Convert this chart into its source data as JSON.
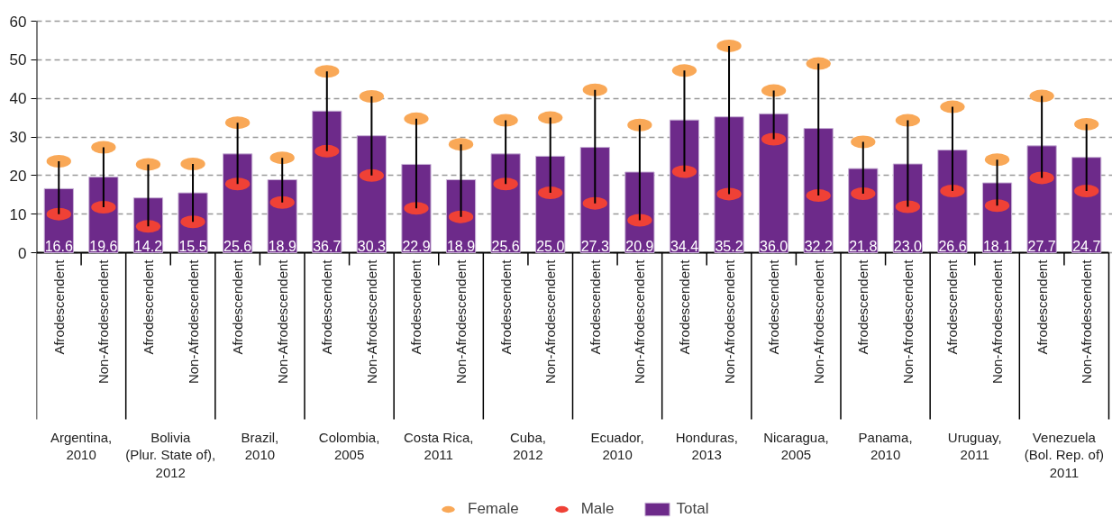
{
  "chart_data": {
    "type": "bar",
    "categories": [
      "Afrodescendent",
      "Non-Afrodescendent",
      "Afrodescendent",
      "Non-Afrodescendent",
      "Afrodescendent",
      "Non-Afrodescendent",
      "Afrodescendent",
      "Non-Afrodescendent",
      "Afrodescendent",
      "Non-Afrodescendent",
      "Afrodescendent",
      "Non-Afrodescendent",
      "Afrodescendent",
      "Non-Afrodescendent",
      "Afrodescendent",
      "Non-Afrodescendent",
      "Afrodescendent",
      "Non-Afrodescendent",
      "Afrodescendent",
      "Non-Afrodescendent",
      "Afrodescendent",
      "Non-Afrodescendent",
      "Afrodescendent",
      "Non-Afrodescendent"
    ],
    "series": [
      {
        "name": "Female",
        "type": "scatter",
        "color": "#f9a857",
        "values": [
          23.7,
          27.3,
          22.9,
          23.0,
          33.7,
          24.6,
          47.0,
          40.5,
          34.7,
          28.1,
          34.3,
          35.0,
          42.2,
          33.1,
          47.2,
          53.6,
          42.0,
          49.0,
          28.7,
          34.3,
          37.8,
          24.1,
          40.6,
          33.3
        ]
      },
      {
        "name": "Male",
        "type": "scatter",
        "color": "#ef4136",
        "values": [
          10.0,
          11.8,
          6.8,
          8.0,
          17.8,
          13.0,
          26.3,
          20.0,
          11.5,
          9.3,
          17.8,
          15.5,
          12.8,
          8.4,
          21.0,
          15.2,
          29.4,
          14.8,
          15.3,
          11.9,
          16.0,
          12.2,
          19.4,
          16.0
        ]
      },
      {
        "name": "Total",
        "color": "#6d2a8a",
        "values": [
          16.6,
          19.6,
          14.2,
          15.5,
          25.6,
          18.9,
          36.7,
          30.3,
          22.9,
          18.9,
          25.6,
          25.0,
          27.3,
          20.9,
          34.4,
          35.2,
          36.0,
          32.2,
          21.8,
          23.0,
          26.6,
          18.1,
          27.7,
          24.7
        ],
        "value_labels": [
          "16.6",
          "19.6",
          "14.2",
          "15.5",
          "25.6",
          "18.9",
          "36.7",
          "30.3",
          "22.9",
          "18.9",
          "25.6",
          "25.0",
          "27.3",
          "20.9",
          "34.4",
          "35.2",
          "36.0",
          "32.2",
          "21.8",
          "23.0",
          "26.6",
          "18.1",
          "27.7",
          "24.7"
        ]
      }
    ],
    "ylim": [
      0,
      60
    ],
    "yticks": [
      0,
      10,
      20,
      30,
      40,
      50,
      60
    ],
    "grid": "y",
    "legend": "bottom",
    "annotations": [
      "Argentina,\n2010",
      "Bolivia\n(Plur. State of),\n2012",
      "Brazil,\n2010",
      "Colombia,\n2005",
      "Costa Rica,\n2011",
      "Cuba,\n2012",
      "Ecuador,\n2010",
      "Honduras,\n2013",
      "Nicaragua,\n2005",
      "Panama,\n2010",
      "Uruguay,\n2011",
      "Venezuela\n(Bol. Rep. of)\n2011"
    ]
  }
}
